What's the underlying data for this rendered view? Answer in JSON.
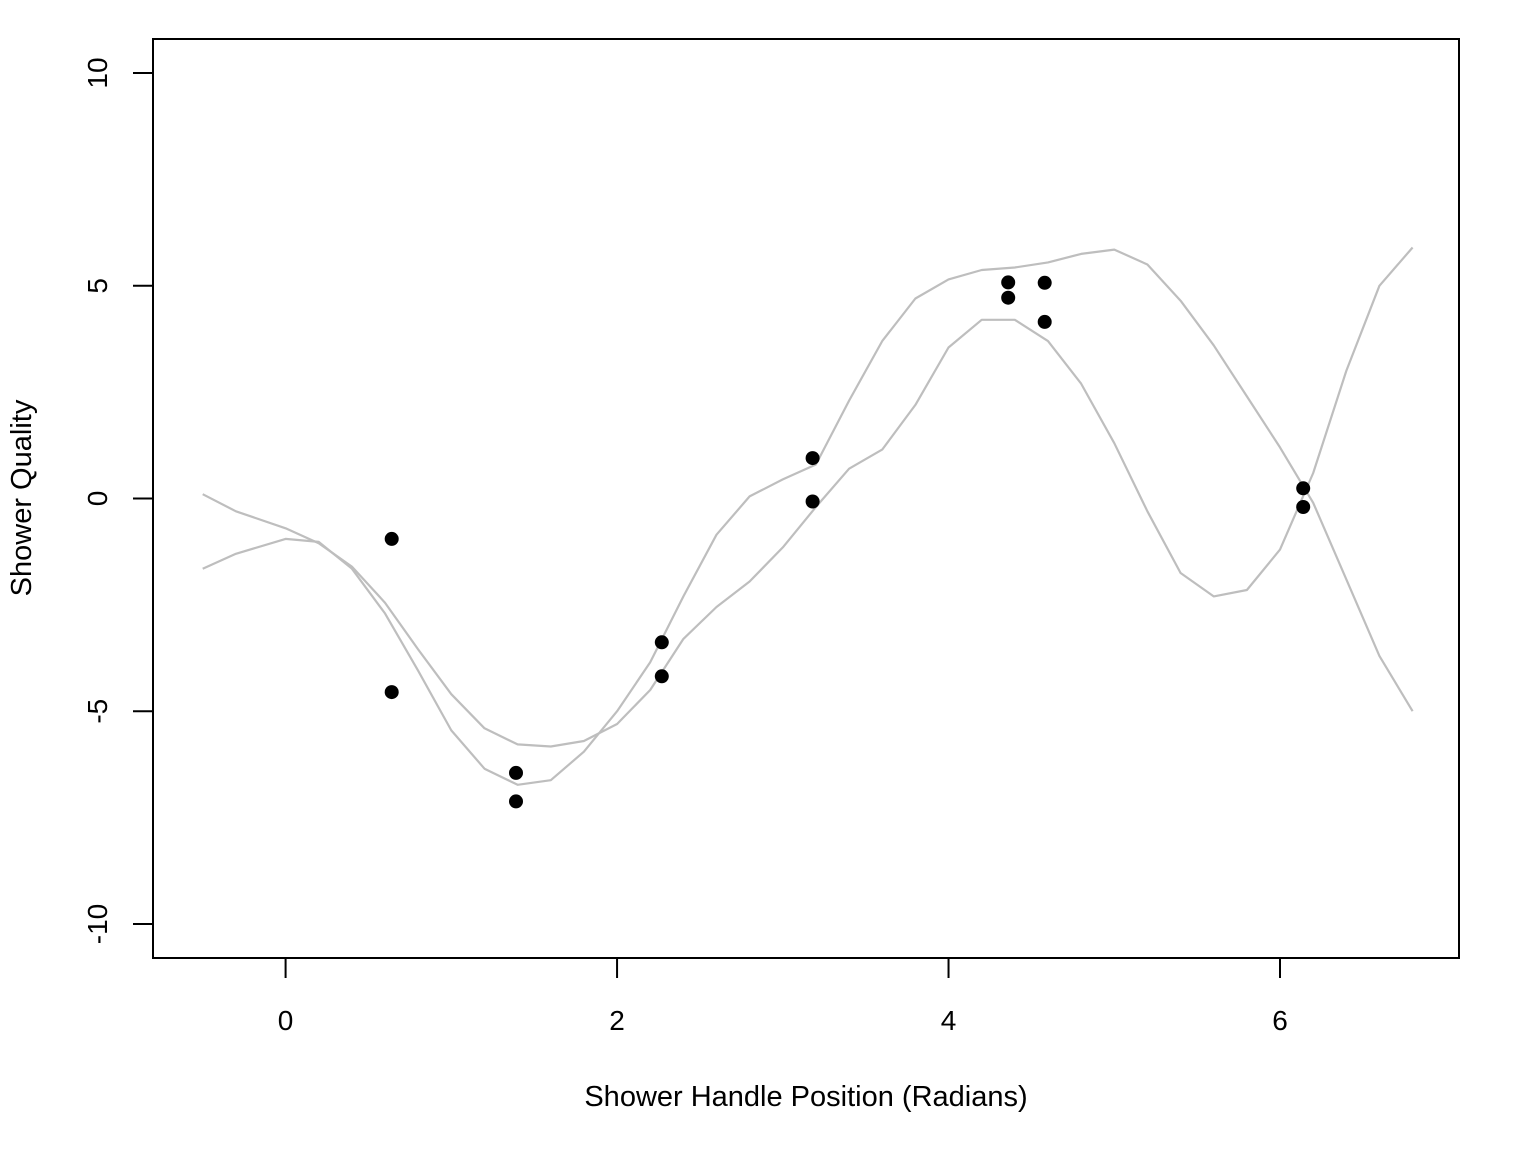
{
  "chart_data": {
    "type": "scatter",
    "title": "",
    "xlabel": "Shower Handle Position (Radians)",
    "ylabel": "Shower Quality",
    "xlim": [
      -0.8,
      7.08
    ],
    "ylim": [
      -10.8,
      10.8
    ],
    "x_ticks": [
      0,
      2,
      4,
      6
    ],
    "y_ticks": [
      -10,
      -5,
      0,
      5,
      10
    ],
    "x_tick_labels": [
      "0",
      "2",
      "4",
      "6"
    ],
    "y_tick_labels": [
      "-10",
      "-5",
      "0",
      "5",
      "10"
    ],
    "grid": false,
    "legend": "none",
    "colors": {
      "points": "#000000",
      "curves": "#bebebe",
      "frame": "#000000"
    },
    "points": {
      "x": [
        0.64,
        0.64,
        1.39,
        1.39,
        2.27,
        2.27,
        3.18,
        3.18,
        4.36,
        4.36,
        4.58,
        4.58,
        6.14,
        6.14
      ],
      "y": [
        -0.95,
        -4.55,
        -6.45,
        -7.12,
        -3.38,
        -4.18,
        0.95,
        -0.07,
        5.08,
        4.72,
        5.07,
        4.15,
        0.24,
        -0.2
      ]
    },
    "curves": [
      {
        "x": [
          -0.5,
          -0.3,
          0.0,
          0.2,
          0.4,
          0.6,
          0.8,
          1.0,
          1.2,
          1.4,
          1.6,
          1.8,
          2.0,
          2.2,
          2.4,
          2.6,
          2.8,
          3.0,
          3.2,
          3.4,
          3.6,
          3.8,
          4.0,
          4.2,
          4.4,
          4.6,
          4.8,
          5.0,
          5.2,
          5.4,
          5.6,
          5.8,
          6.0,
          6.2,
          6.4,
          6.6,
          6.8
        ],
        "y": [
          0.1,
          -0.3,
          -0.7,
          -1.05,
          -1.6,
          -2.45,
          -3.55,
          -4.6,
          -5.4,
          -5.78,
          -5.83,
          -5.7,
          -5.3,
          -4.5,
          -3.3,
          -2.55,
          -1.95,
          -1.15,
          -0.2,
          0.7,
          1.15,
          2.2,
          3.55,
          4.2,
          4.2,
          3.7,
          2.7,
          1.3,
          -0.3,
          -1.75,
          -2.3,
          -2.15,
          -1.2,
          0.6,
          3.0,
          5.0,
          5.9
        ]
      },
      {
        "x": [
          -0.5,
          -0.3,
          0.0,
          0.2,
          0.4,
          0.6,
          0.8,
          1.0,
          1.2,
          1.4,
          1.6,
          1.8,
          2.0,
          2.2,
          2.4,
          2.6,
          2.8,
          3.0,
          3.2,
          3.4,
          3.6,
          3.8,
          4.0,
          4.2,
          4.4,
          4.6,
          4.8,
          5.0,
          5.2,
          5.4,
          5.6,
          5.8,
          6.0,
          6.2,
          6.4,
          6.6,
          6.8
        ],
        "y": [
          -1.65,
          -1.3,
          -0.95,
          -1.02,
          -1.65,
          -2.7,
          -4.05,
          -5.45,
          -6.35,
          -6.73,
          -6.62,
          -5.95,
          -5.0,
          -3.85,
          -2.3,
          -0.85,
          0.05,
          0.45,
          0.8,
          2.3,
          3.7,
          4.7,
          5.15,
          5.37,
          5.43,
          5.55,
          5.75,
          5.85,
          5.5,
          4.65,
          3.6,
          2.4,
          1.2,
          -0.1,
          -1.9,
          -3.7,
          -5.0
        ]
      }
    ]
  }
}
